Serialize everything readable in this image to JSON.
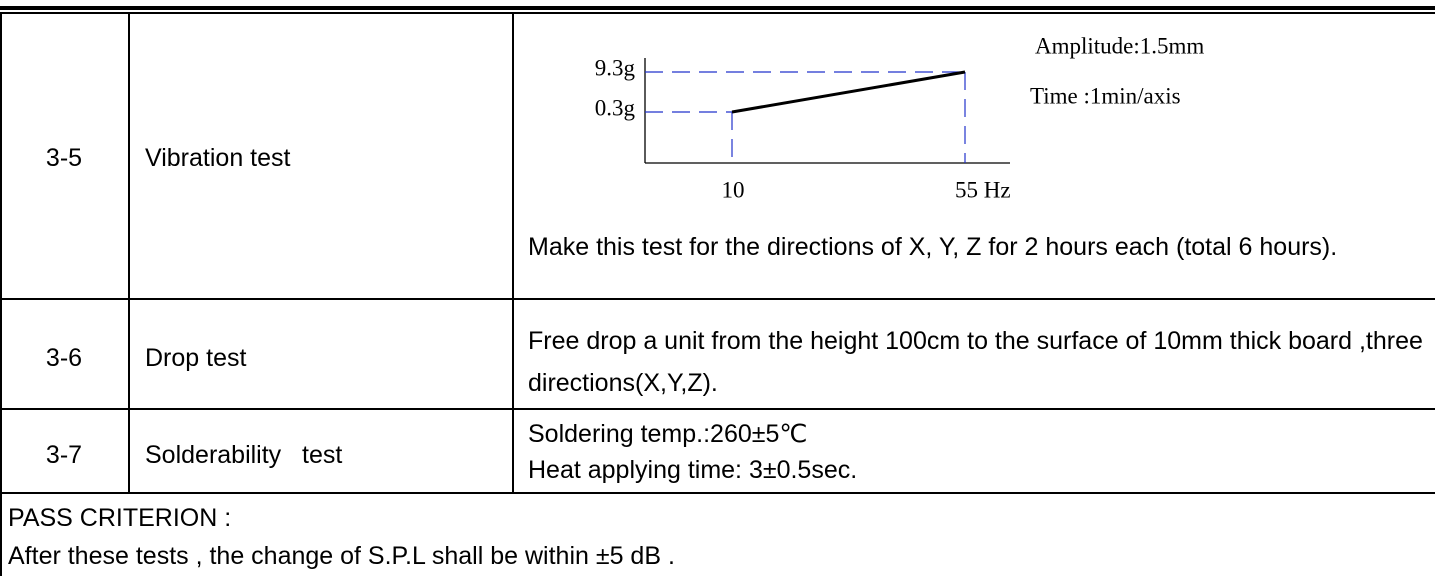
{
  "table": {
    "rows": [
      {
        "no": "3-5",
        "item": "Vibration test",
        "chart": {
          "y_labels": [
            "9.3g",
            "0.3g"
          ],
          "x_labels": [
            "10",
            "55 Hz"
          ],
          "notes": [
            "Amplitude:1.5mm",
            "Time :1min/axis"
          ]
        },
        "condition": "Make this test for the directions of X, Y, Z for 2 hours each (total 6 hours)."
      },
      {
        "no": "3-6",
        "item": "Drop test",
        "condition": "Free drop a unit from the height 100cm to the surface of 10mm thick board ,three directions(X,Y,Z)."
      },
      {
        "no": "3-7",
        "item": "Solderability   test",
        "condition_lines": [
          "Soldering temp.:260±5℃",
          "Heat applying time: 3±0.5sec."
        ]
      }
    ]
  },
  "footer": {
    "title": "PASS CRITERION :",
    "text": "After these tests , the change of S.P.L shall be within ±5 dB ."
  }
}
